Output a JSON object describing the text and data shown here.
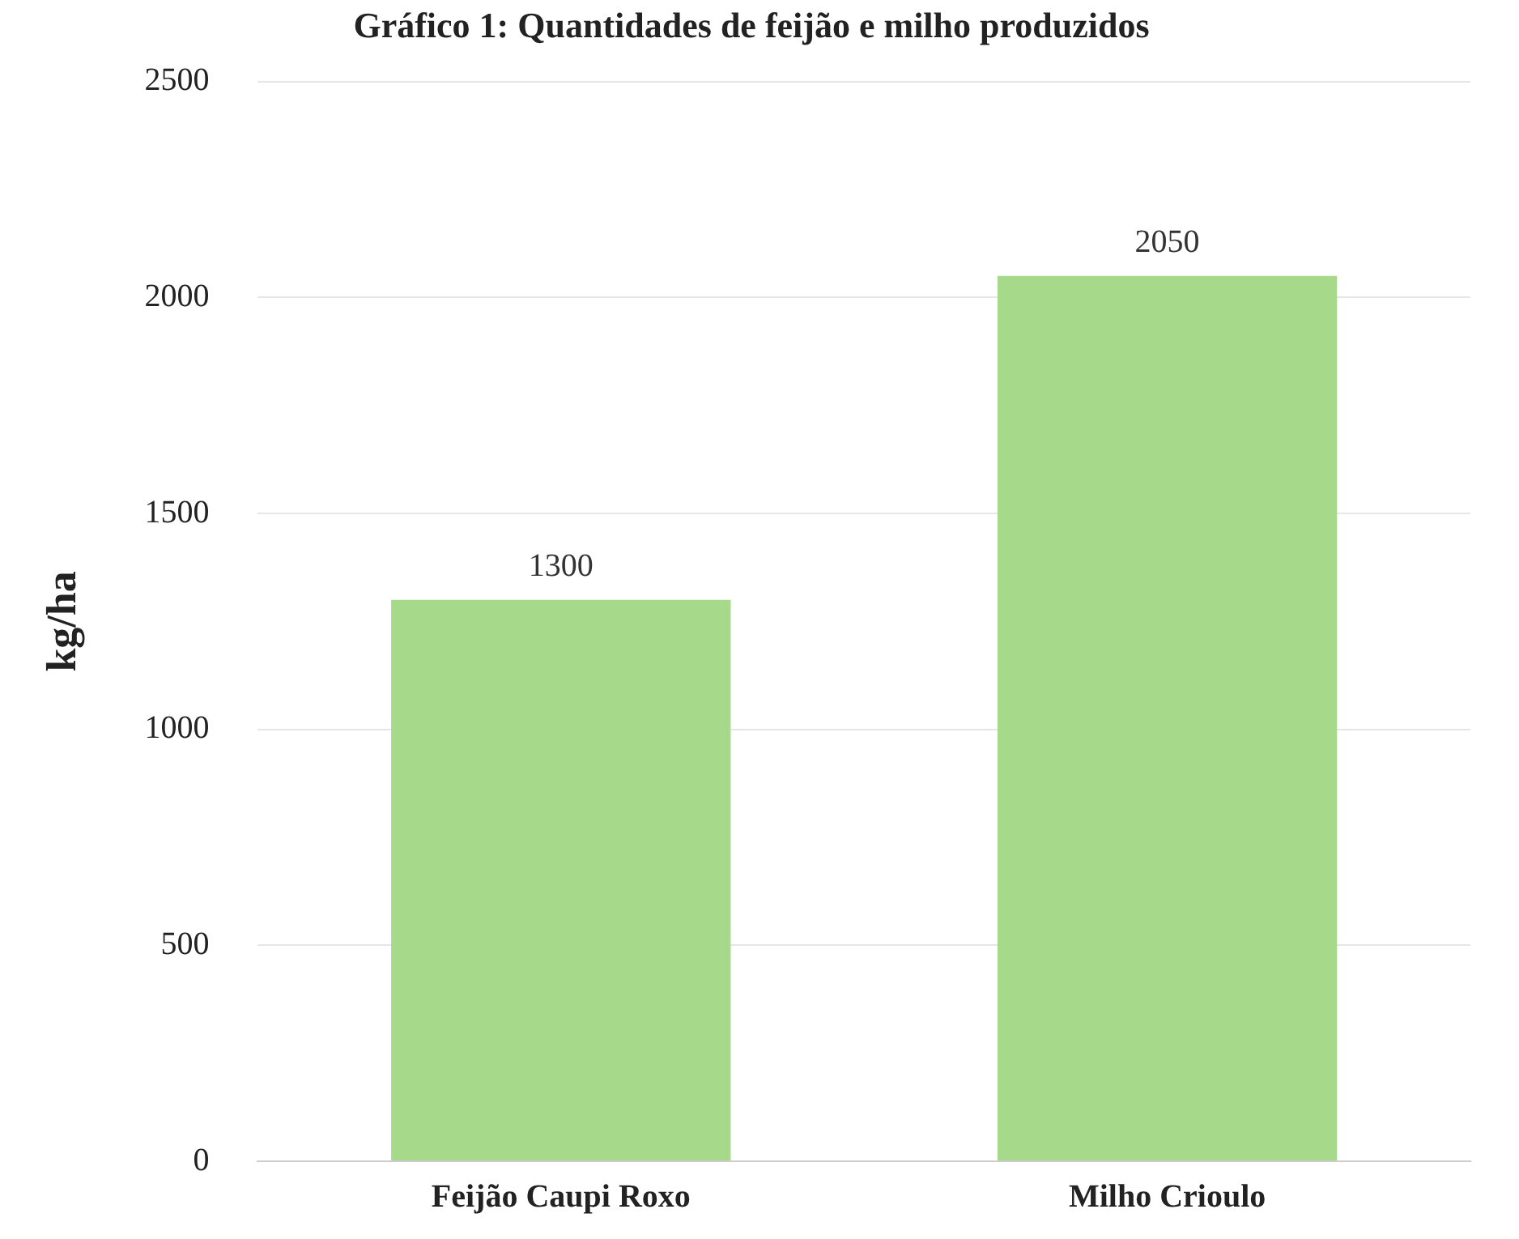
{
  "chart_data": {
    "type": "bar",
    "title": "Gráfico 1: Quantidades de feijão e milho produzidos",
    "ylabel": "kg/ha",
    "categories": [
      "Feijão Caupi Roxo",
      "Milho Crioulo"
    ],
    "values": [
      1300,
      2050
    ],
    "color": "#a6d98a",
    "ylim": [
      0,
      2500
    ],
    "yticks": [
      0,
      500,
      1000,
      1500,
      2000,
      2500
    ],
    "grid": "y",
    "data_labels": true
  }
}
